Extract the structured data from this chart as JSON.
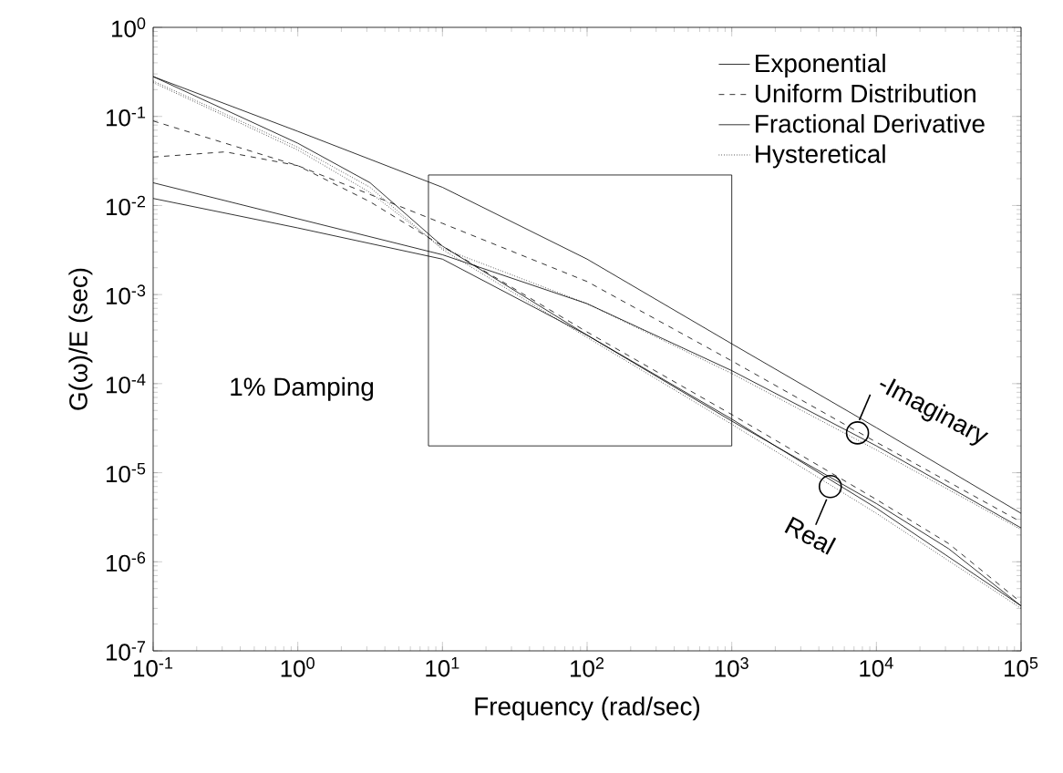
{
  "chart_data": {
    "type": "line",
    "xlabel": "Frequency (rad/sec)",
    "ylabel": "G(ω)/E (sec)",
    "log": "xy",
    "xlim": [
      0.1,
      100000
    ],
    "ylim": [
      1e-07,
      1
    ],
    "xticks": [
      {
        "value": 0.1,
        "label": "10$^{-1}$"
      },
      {
        "value": 1,
        "label": "10$^{0}$"
      },
      {
        "value": 10,
        "label": "10$^{1}$"
      },
      {
        "value": 100,
        "label": "10$^{2}$"
      },
      {
        "value": 1000,
        "label": "10$^{3}$"
      },
      {
        "value": 10000,
        "label": "10$^{4}$"
      },
      {
        "value": 100000,
        "label": "10$^{5}$"
      }
    ],
    "yticks": [
      {
        "value": 1e-07,
        "label": "10$^{-7}$"
      },
      {
        "value": 1e-06,
        "label": "10$^{-6}$"
      },
      {
        "value": 1e-05,
        "label": "10$^{-5}$"
      },
      {
        "value": 0.0001,
        "label": "10$^{-4}$"
      },
      {
        "value": 0.001,
        "label": "10$^{-3}$"
      },
      {
        "value": 0.01,
        "label": "10$^{-2}$"
      },
      {
        "value": 0.1,
        "label": "10$^{-1}$"
      },
      {
        "value": 1,
        "label": "10$^{0}$"
      }
    ],
    "legend": "top right",
    "series": [
      {
        "name": "Exponential",
        "color": "#000000",
        "line_style": "solid",
        "x": [
          0.1,
          1,
          10,
          100,
          1000,
          10000,
          100000
        ],
        "values": [
          0.28,
          0.068,
          0.016,
          0.0025,
          0.00028,
          3.2e-05,
          3.5e-06
        ]
      },
      {
        "name": "Uniform Distribution",
        "color": "#000000",
        "line_style": "dashed",
        "x": [
          0.1,
          1,
          10,
          100,
          1000,
          10000,
          100000
        ],
        "values": [
          0.089,
          0.028,
          0.0063,
          0.0014,
          0.00018,
          2.2e-05,
          2.8e-06
        ]
      },
      {
        "name": "Fractional Derivative",
        "color": "#000000",
        "line_style": "solid",
        "x": [
          0.1,
          1,
          10,
          100,
          1000,
          10000,
          100000
        ],
        "values": [
          0.018,
          0.0071,
          0.0028,
          0.00079,
          0.00014,
          2e-05,
          2.4e-06
        ]
      },
      {
        "name": "Hysteretical",
        "color": "#000000",
        "line_style": "dotted",
        "x": [
          0.1,
          1,
          3.16,
          10,
          100,
          1000,
          10000,
          100000
        ],
        "values": [
          0.24,
          0.042,
          0.014,
          0.0033,
          0.00079,
          0.00013,
          1.8e-05,
          2.3e-06
        ]
      },
      {
        "color": "#000000",
        "line_style": "solid",
        "x": [
          0.1,
          1,
          3.16,
          10,
          100,
          1000,
          10000,
          100000
        ],
        "values": [
          0.28,
          0.05,
          0.018,
          0.0035,
          0.00035,
          4e-05,
          4e-06,
          3.2e-07
        ]
      },
      {
        "color": "#000000",
        "line_style": "dashed",
        "x": [
          0.1,
          0.316,
          1,
          3.16,
          10,
          100,
          1000,
          10000,
          31600,
          100000
        ],
        "values": [
          0.035,
          0.04,
          0.028,
          0.011,
          0.0035,
          0.00038,
          4.5e-05,
          5e-06,
          1.6e-06,
          3.5e-07
        ]
      },
      {
        "color": "#000000",
        "line_style": "solid",
        "x": [
          0.1,
          1,
          10,
          100,
          1000,
          10000,
          31600,
          100000
        ],
        "values": [
          0.012,
          0.0056,
          0.0025,
          0.00035,
          3.8e-05,
          4.5e-06,
          1.4e-06,
          3.2e-07
        ]
      },
      {
        "color": "#000000",
        "line_style": "dotted",
        "x": [
          0.1,
          1,
          3.16,
          10,
          100,
          1000,
          10000,
          100000
        ],
        "values": [
          0.25,
          0.045,
          0.016,
          0.0032,
          0.00033,
          3.5e-05,
          3.5e-06,
          3e-07
        ]
      }
    ],
    "annotations": [
      "1% Damping",
      {
        "text": "-Imaginary",
        "x": 7400,
        "y": 2.8e-05
      },
      {
        "text": "Real",
        "x": 4800,
        "y": 7e-06
      }
    ]
  }
}
